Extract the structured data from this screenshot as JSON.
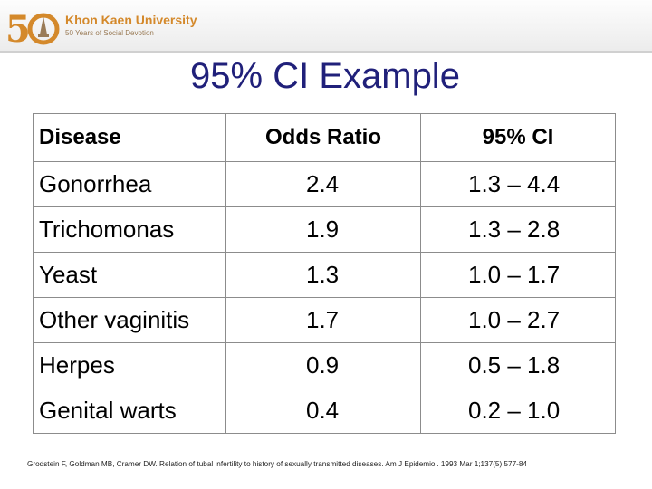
{
  "header": {
    "logo": {
      "title": "Khon Kaen University",
      "subtitle": "50 Years of Social Devotion",
      "numeral": "50",
      "colors": {
        "gold": "#d4892b",
        "brown": "#9a7b56"
      }
    }
  },
  "slide": {
    "title": "95% CI Example"
  },
  "table": {
    "columns": [
      "Disease",
      "Odds Ratio",
      "95% CI"
    ],
    "rows": [
      {
        "disease": "Gonorrhea",
        "odds_ratio": "2.4",
        "ci": "1.3 – 4.4"
      },
      {
        "disease": "Trichomonas",
        "odds_ratio": "1.9",
        "ci": "1.3 – 2.8"
      },
      {
        "disease": "Yeast",
        "odds_ratio": "1.3",
        "ci": "1.0 – 1.7"
      },
      {
        "disease": "Other vaginitis",
        "odds_ratio": "1.7",
        "ci": "1.0 – 2.7"
      },
      {
        "disease": "Herpes",
        "odds_ratio": "0.9",
        "ci": "0.5 – 1.8"
      },
      {
        "disease": "Genital warts",
        "odds_ratio": "0.4",
        "ci": "0.2 – 1.0"
      }
    ]
  },
  "footnote": "Grodstein F, Goldman MB, Cramer DW. Relation of tubal infertility to history of sexually transmitted diseases. Am J Epidemiol. 1993 Mar 1;137(5):577-84",
  "colors": {
    "title": "#20207a",
    "border": "#8c8c8c"
  }
}
